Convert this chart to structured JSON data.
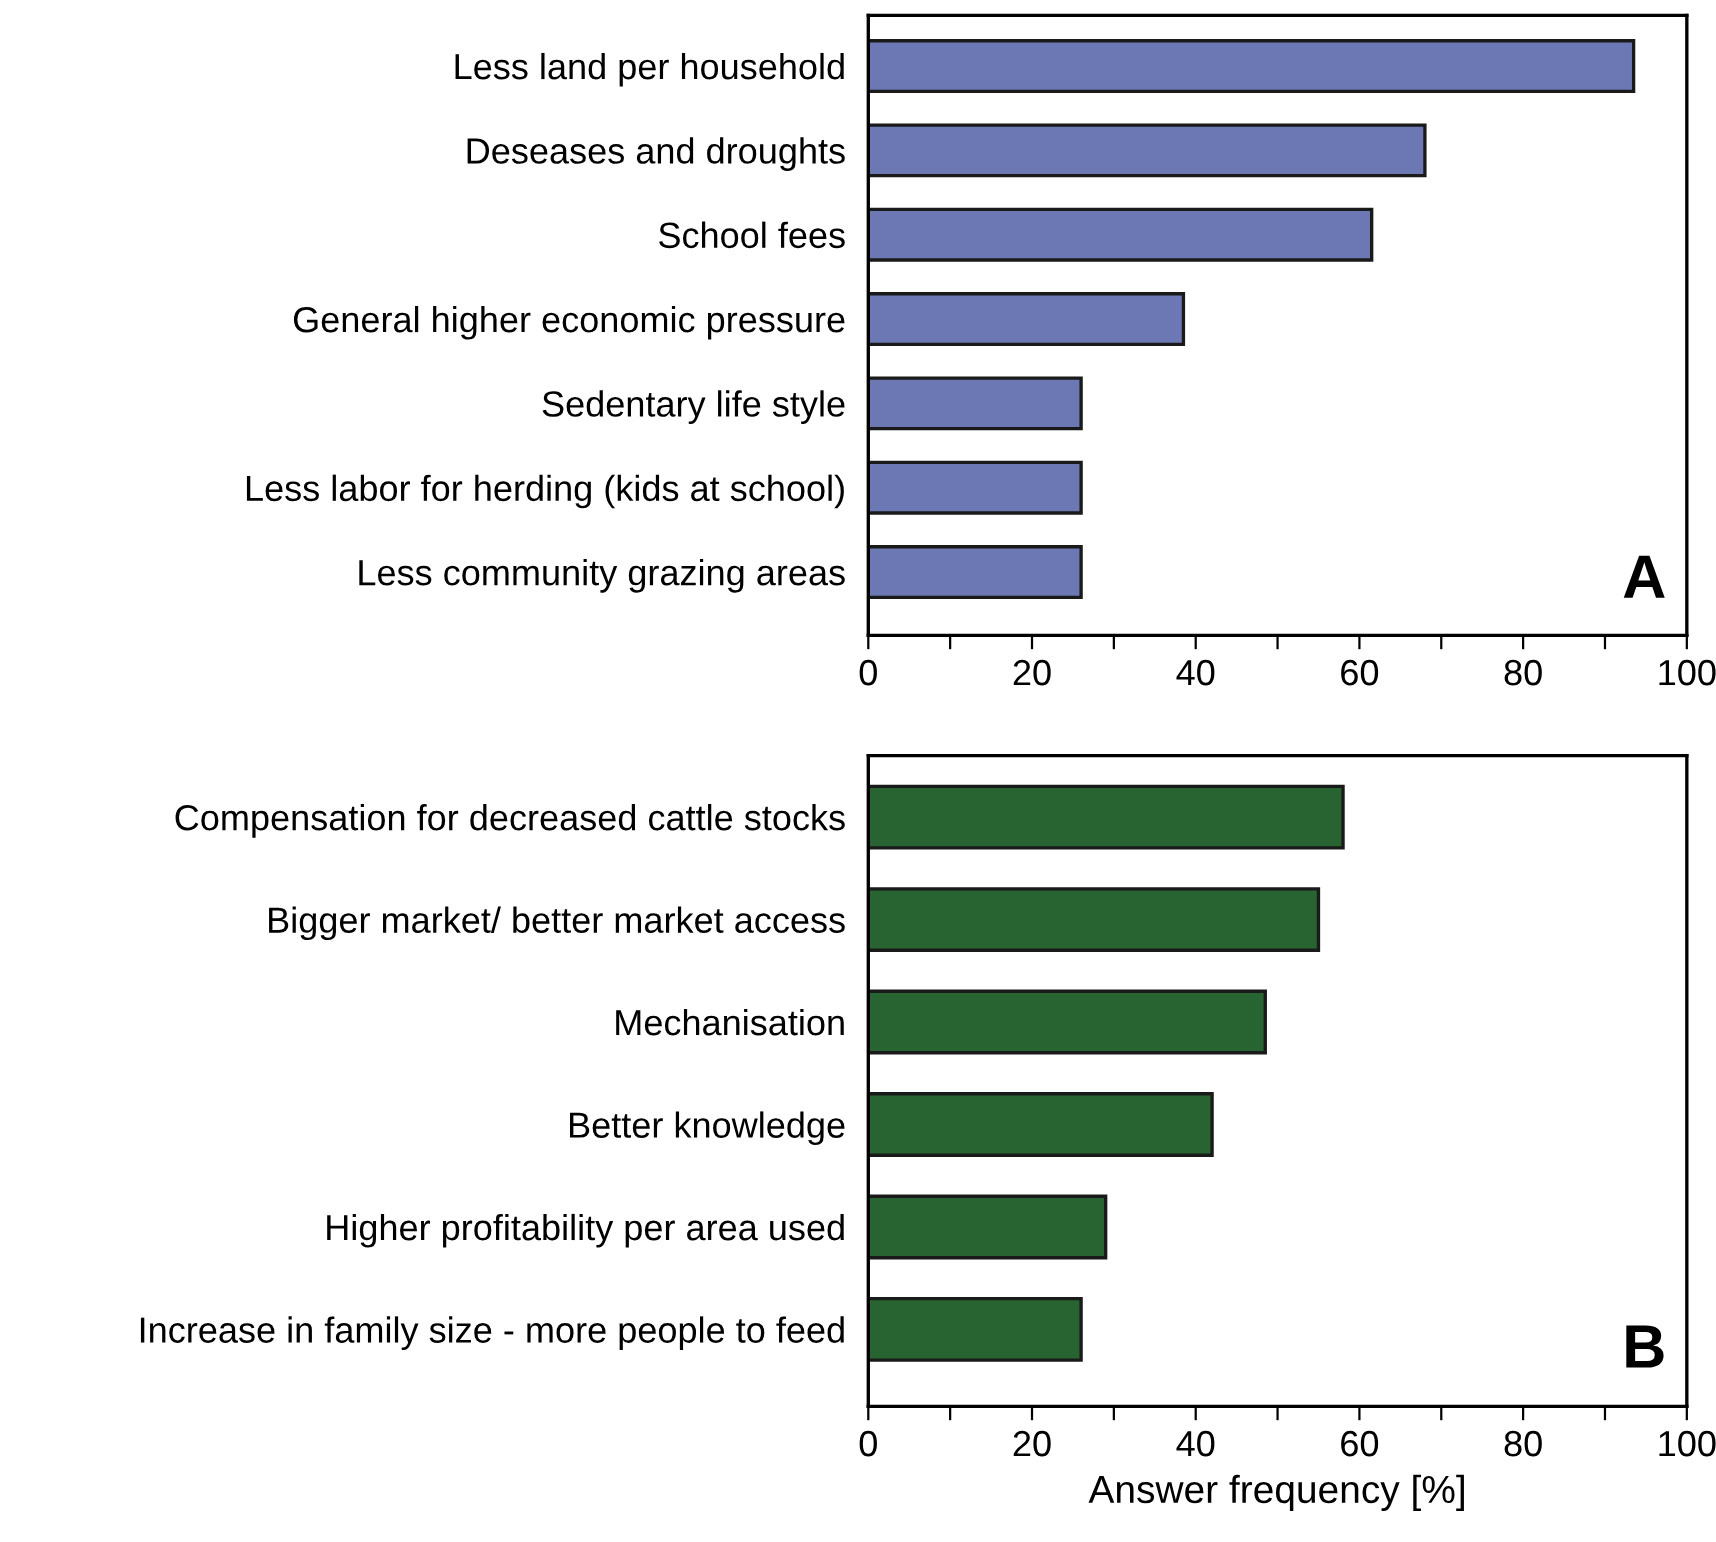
{
  "chart_data": [
    {
      "type": "bar",
      "orientation": "horizontal",
      "categories": [
        "Less land per household",
        "Deseases and droughts",
        "School fees",
        "General higher economic pressure",
        "Sedentary life style",
        "Less labor for herding (kids at school)",
        "Less community grazing areas"
      ],
      "series": [
        {
          "color": "#6b78b4",
          "values": [
            93.5,
            68,
            61.5,
            38.5,
            26,
            26,
            26
          ]
        }
      ],
      "xlim": [
        0,
        100
      ],
      "xticks": [
        0,
        {
          "value": 10,
          "label": null
        },
        20,
        {
          "value": 30,
          "label": null
        },
        40,
        {
          "value": 50,
          "label": null
        },
        60,
        {
          "value": 70,
          "label": null
        },
        80,
        {
          "value": 90,
          "label": null
        },
        100
      ],
      "annotations": [
        "A"
      ],
      "grid": false
    },
    {
      "type": "bar",
      "orientation": "horizontal",
      "categories": [
        "Compensation for decreased cattle stocks",
        "Bigger market/ better market access",
        "Mechanisation",
        "Better knowledge",
        "Higher profitability per area used",
        "Increase in family size - more people to feed"
      ],
      "series": [
        {
          "color": "#276431",
          "values": [
            58,
            55,
            48.5,
            42,
            29,
            26
          ]
        }
      ],
      "xlim": [
        0,
        100
      ],
      "xticks": [
        0,
        {
          "value": 10,
          "label": null
        },
        20,
        {
          "value": 30,
          "label": null
        },
        40,
        {
          "value": 50,
          "label": null
        },
        60,
        {
          "value": 70,
          "label": null
        },
        80,
        {
          "value": 90,
          "label": null
        },
        100
      ],
      "xlabel": "Answer frequency [%]",
      "annotations": [
        "B"
      ],
      "grid": false
    }
  ]
}
